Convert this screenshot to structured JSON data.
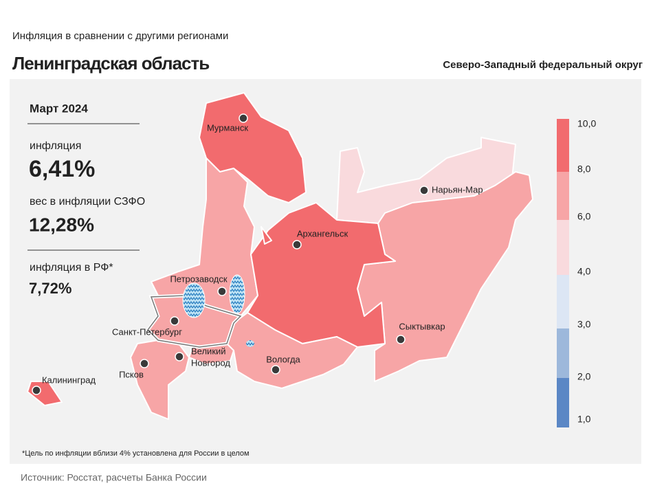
{
  "header": {
    "subtitle": "Инфляция  в сравнении  с другими  регионами",
    "title": "Ленинградская область",
    "district": "Северо-Западный федеральный округ"
  },
  "panel": {
    "period": "Март 2024",
    "inflation_label": "инфляция",
    "inflation": "6,41%",
    "weight_label": "вес в инфляции  СЗФО",
    "weight": "12,28%",
    "rf_label": "инфляция  в РФ*",
    "rf": "7,72%"
  },
  "cities": [
    {
      "lines": [
        "Мурманск"
      ]
    },
    {
      "lines": [
        "Нарьян-Мар"
      ]
    },
    {
      "lines": [
        "Архангельск"
      ]
    },
    {
      "lines": [
        "Петрозаводск"
      ]
    },
    {
      "lines": [
        "Санкт-Петербург"
      ]
    },
    {
      "lines": [
        "Великий",
        "Новгород"
      ]
    },
    {
      "lines": [
        "Псков"
      ]
    },
    {
      "lines": [
        "Вологда"
      ]
    },
    {
      "lines": [
        "Сыктывкар"
      ]
    },
    {
      "lines": [
        "Калининград"
      ]
    }
  ],
  "legend": {
    "ticks": [
      "10,0",
      "8,0",
      "6,0",
      "4,0",
      "3,0",
      "2,0",
      "1,0"
    ],
    "colors": [
      "#f26b6e",
      "#f7a5a6",
      "#f9dadd",
      "#dce6f4",
      "#9db8db",
      "#5b87c5"
    ]
  },
  "footnote": "*Цель по инфляции вблизи 4% установлена для России в целом",
  "source": "Источник: Росстат, расчеты Банка России"
}
